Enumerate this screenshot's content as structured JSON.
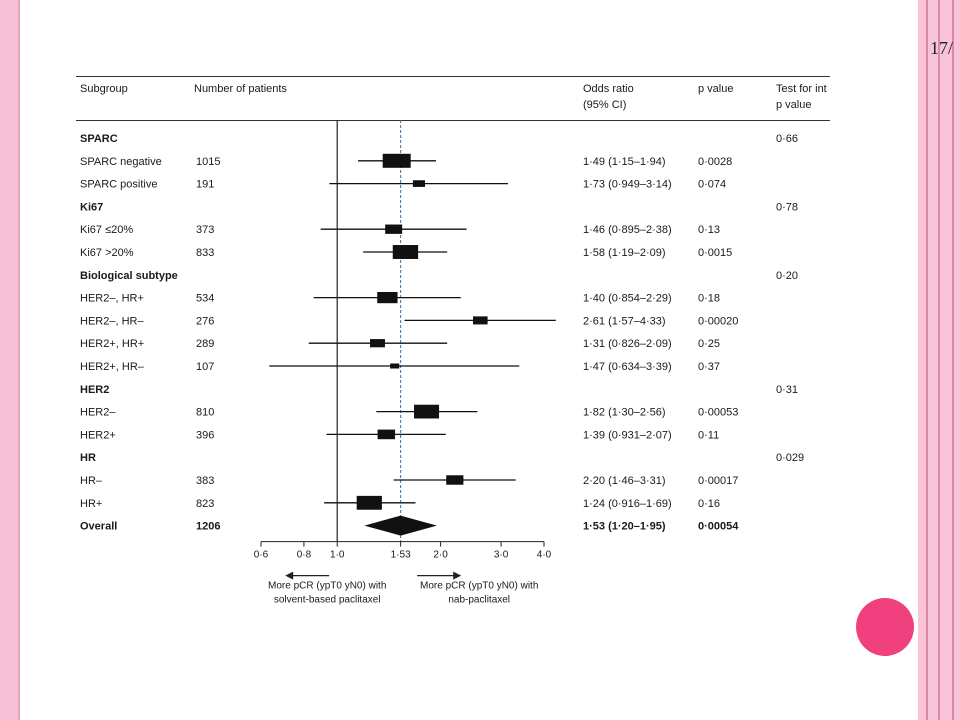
{
  "slide": {
    "page_number": "17/",
    "accent_color": "#f0407e",
    "frame_color": "#f7bfd3"
  },
  "table_headers": {
    "subgroup": "Subgroup",
    "patients": "Number of patients",
    "odds_ratio_line1": "Odds ratio",
    "odds_ratio_line2": "(95% CI)",
    "p_value": "p value",
    "interaction_line1": "Test for int",
    "interaction_line2": "p value"
  },
  "chart_data": {
    "type": "forest",
    "x_scale": "log",
    "xlim": [
      0.6,
      4.0
    ],
    "x_ticks": [
      {
        "value": 0.6,
        "label": "0·6"
      },
      {
        "value": 0.8,
        "label": "0·8"
      },
      {
        "value": 1.0,
        "label": "1·0"
      },
      {
        "value": 1.53,
        "label": "1·53"
      },
      {
        "value": 2.0,
        "label": "2·0"
      },
      {
        "value": 3.0,
        "label": "3·0"
      },
      {
        "value": 4.0,
        "label": "4·0"
      }
    ],
    "reference_line": 1.0,
    "overall_line": 1.53,
    "arrow_left_label": [
      "More pCR (ypT0 yN0) with",
      "solvent-based paclitaxel"
    ],
    "arrow_right_label": [
      "More pCR (ypT0 yN0) with",
      "nab-paclitaxel"
    ],
    "rows": [
      {
        "kind": "group",
        "label": "SPARC",
        "interaction_p": "0·66"
      },
      {
        "kind": "item",
        "label": "SPARC negative",
        "n": "1015",
        "or": 1.49,
        "lo": 1.15,
        "hi": 1.94,
        "or_text": "1·49 (1·15–1·94)",
        "p": "0·0028"
      },
      {
        "kind": "item",
        "label": "SPARC positive",
        "n": "191",
        "or": 1.73,
        "lo": 0.949,
        "hi": 3.14,
        "or_text": "1·73 (0·949–3·14)",
        "p": "0·074"
      },
      {
        "kind": "group",
        "label": "Ki67",
        "interaction_p": "0·78"
      },
      {
        "kind": "item",
        "label": "Ki67 ≤20%",
        "n": "373",
        "or": 1.46,
        "lo": 0.895,
        "hi": 2.38,
        "or_text": "1·46 (0·895–2·38)",
        "p": "0·13"
      },
      {
        "kind": "item",
        "label": "Ki67 >20%",
        "n": "833",
        "or": 1.58,
        "lo": 1.19,
        "hi": 2.09,
        "or_text": "1·58 (1·19–2·09)",
        "p": "0·0015"
      },
      {
        "kind": "group",
        "label": "Biological subtype",
        "interaction_p": "0·20"
      },
      {
        "kind": "item",
        "label": "HER2–, HR+",
        "n": "534",
        "or": 1.4,
        "lo": 0.854,
        "hi": 2.29,
        "or_text": "1·40 (0·854–2·29)",
        "p": "0·18"
      },
      {
        "kind": "item",
        "label": "HER2–, HR–",
        "n": "276",
        "or": 2.61,
        "lo": 1.57,
        "hi": 4.33,
        "or_text": "2·61 (1·57–4·33)",
        "p": "0·00020"
      },
      {
        "kind": "item",
        "label": "HER2+, HR+",
        "n": "289",
        "or": 1.31,
        "lo": 0.826,
        "hi": 2.09,
        "or_text": "1·31 (0·826–2·09)",
        "p": "0·25"
      },
      {
        "kind": "item",
        "label": "HER2+, HR–",
        "n": "107",
        "or": 1.47,
        "lo": 0.634,
        "hi": 3.39,
        "or_text": "1·47 (0·634–3·39)",
        "p": "0·37"
      },
      {
        "kind": "group",
        "label": "HER2",
        "interaction_p": "0·31"
      },
      {
        "kind": "item",
        "label": "HER2–",
        "n": "810",
        "or": 1.82,
        "lo": 1.3,
        "hi": 2.56,
        "or_text": "1·82 (1·30–2·56)",
        "p": "0·00053"
      },
      {
        "kind": "item",
        "label": "HER2+",
        "n": "396",
        "or": 1.39,
        "lo": 0.931,
        "hi": 2.07,
        "or_text": "1·39 (0·931–2·07)",
        "p": "0·11"
      },
      {
        "kind": "group",
        "label": "HR",
        "interaction_p": "0·029"
      },
      {
        "kind": "item",
        "label": "HR–",
        "n": "383",
        "or": 2.2,
        "lo": 1.46,
        "hi": 3.31,
        "or_text": "2·20 (1·46–3·31)",
        "p": "0·00017"
      },
      {
        "kind": "item",
        "label": "HR+",
        "n": "823",
        "or": 1.24,
        "lo": 0.916,
        "hi": 1.69,
        "or_text": "1·24 (0·916–1·69)",
        "p": "0·16"
      },
      {
        "kind": "overall",
        "label": "Overall",
        "n": "1206",
        "or": 1.53,
        "lo": 1.2,
        "hi": 1.95,
        "or_text": "1·53 (1·20–1·95)",
        "p": "0·00054"
      }
    ]
  }
}
